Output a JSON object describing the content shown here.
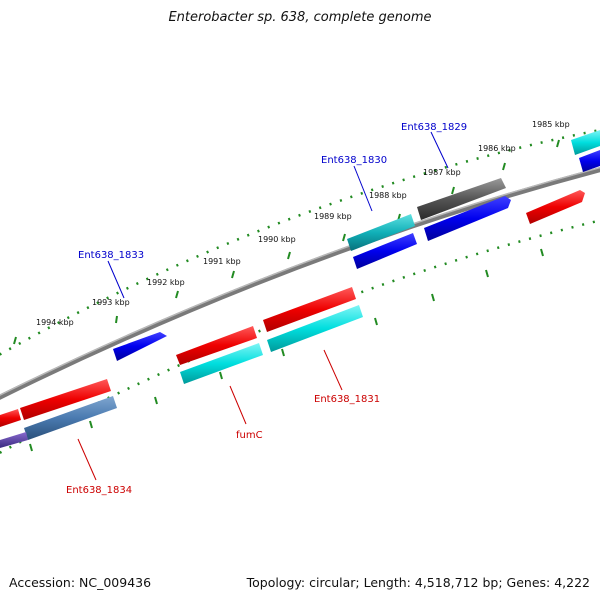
{
  "title": "Enterobacter sp. 638, complete genome",
  "footer": {
    "accession": "Accession: NC_009436",
    "summary": "Topology: circular; Length: 4,518,712 bp; Genes: 4,222"
  },
  "colors": {
    "forward_cds": "#ff0000",
    "reverse_cds": "#0000ee",
    "forward_gene": "#00e0e0",
    "rrna_or_other": "#555555",
    "backbone": "#888888",
    "tick": "#228b22",
    "label_blue": "#0000cc",
    "label_red": "#cc0000"
  },
  "tick_labels": [
    "1994 kbp",
    "1993 kbp",
    "1992 kbp",
    "1991 kbp",
    "1990 kbp",
    "1989 kbp",
    "1988 kbp",
    "1987 kbp",
    "1986 kbp",
    "1985 kbp"
  ],
  "gene_labels": {
    "top": [
      "Ent638_1833",
      "Ent638_1830",
      "Ent638_1829"
    ],
    "bottom": [
      "fumC",
      "Ent638_1831",
      "Ent638_1834"
    ]
  }
}
